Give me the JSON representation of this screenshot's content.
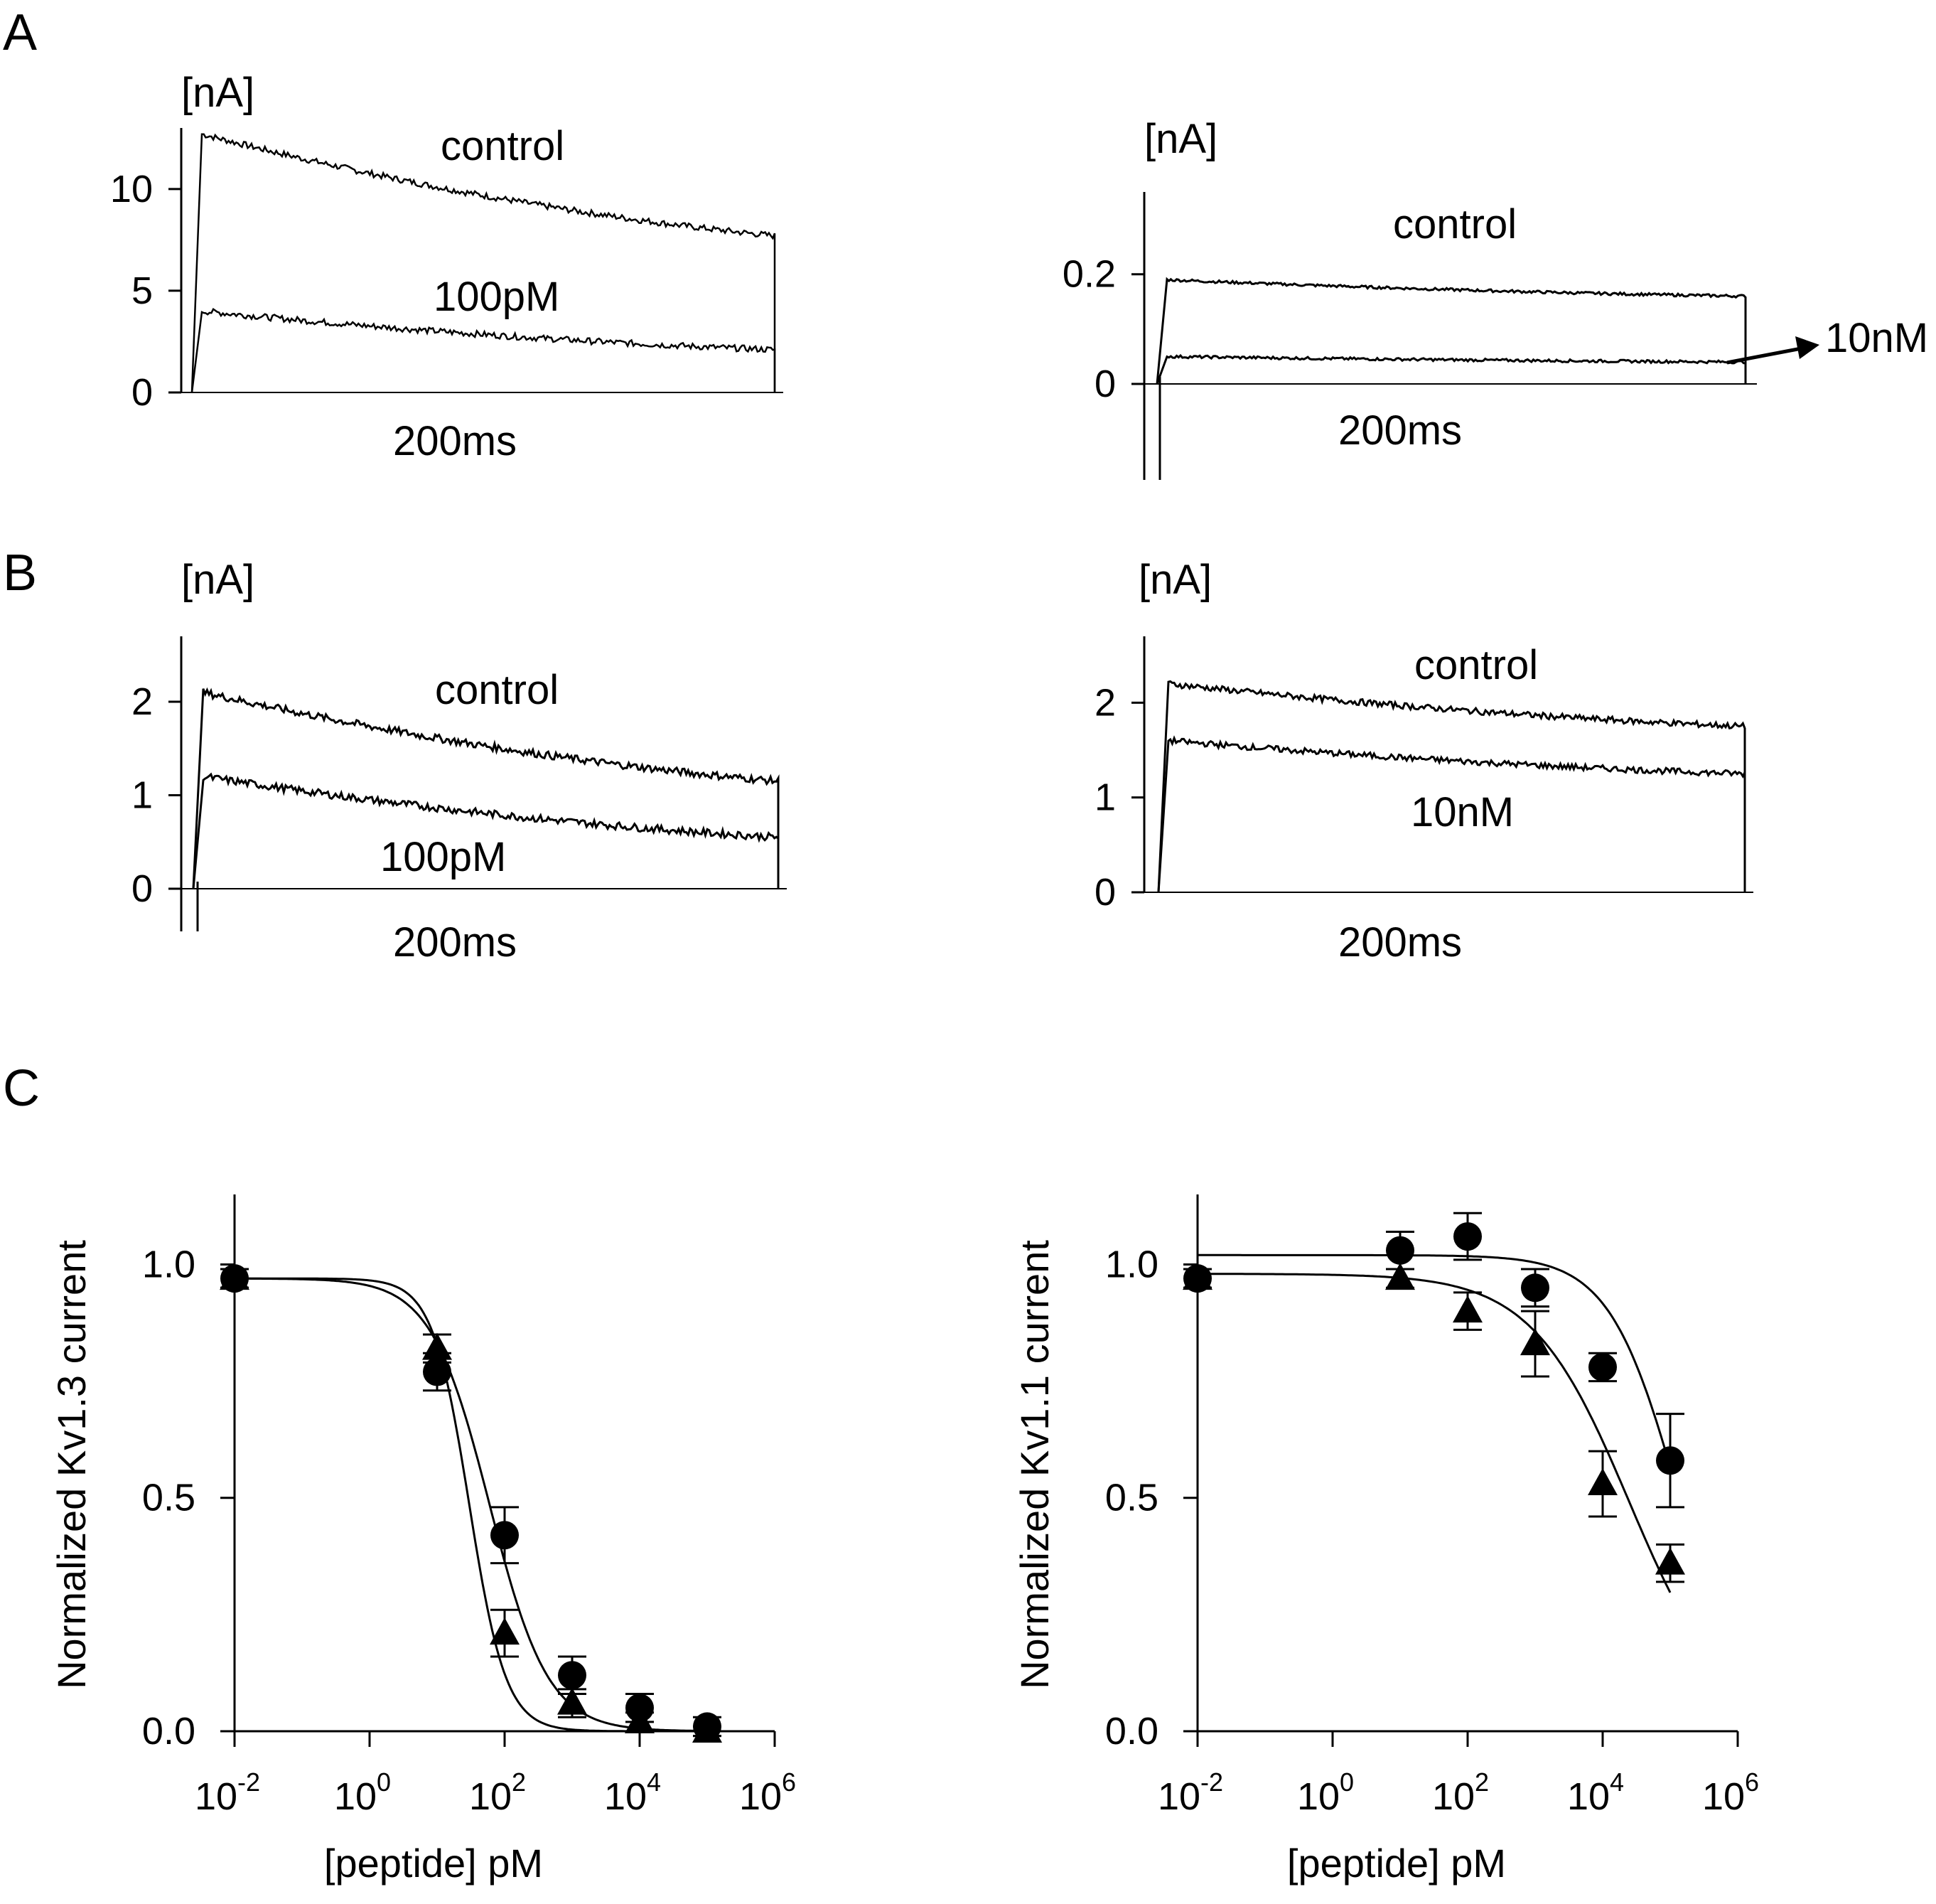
{
  "panels": {
    "A": "A",
    "B": "B",
    "C": "C"
  },
  "traces": [
    {
      "id": "A-left",
      "panel": "A",
      "unit": "[nA]",
      "yticks": [
        0,
        5,
        10
      ],
      "ytick_labels": [
        "0",
        "5",
        "10"
      ],
      "ylim": [
        0,
        13
      ],
      "time_label": "200ms",
      "noise": 0.02,
      "series": [
        {
          "name": "control",
          "peak": 12.7,
          "end": 7.7
        },
        {
          "name": "100pM",
          "peak": 4.0,
          "end": 2.1
        }
      ]
    },
    {
      "id": "A-right",
      "panel": "A",
      "unit": "[nA]",
      "yticks": [
        0,
        0.2
      ],
      "ytick_labels": [
        "0",
        "0.2"
      ],
      "ylim": [
        0,
        0.35
      ],
      "time_label": "200ms",
      "noise": 0.012,
      "series": [
        {
          "name": "control",
          "peak": 0.19,
          "end": 0.16
        },
        {
          "name": "10nM",
          "peak": 0.05,
          "end": 0.04
        }
      ]
    },
    {
      "id": "B-left",
      "panel": "B",
      "unit": "[nA]",
      "yticks": [
        0,
        1,
        2
      ],
      "ytick_labels": [
        "0",
        "1",
        "2"
      ],
      "ylim": [
        0,
        2.7
      ],
      "time_label": "200ms",
      "noise": 0.025,
      "series": [
        {
          "name": "control",
          "peak": 2.1,
          "end": 1.15
        },
        {
          "name": "100pM",
          "peak": 1.2,
          "end": 0.55
        }
      ]
    },
    {
      "id": "B-right",
      "panel": "B",
      "unit": "[nA]",
      "yticks": [
        0,
        1,
        2
      ],
      "ytick_labels": [
        "0",
        "1",
        "2"
      ],
      "ylim": [
        0,
        2.7
      ],
      "time_label": "200ms",
      "noise": 0.02,
      "series": [
        {
          "name": "control",
          "peak": 2.2,
          "end": 1.75
        },
        {
          "name": "10nM",
          "peak": 1.6,
          "end": 1.25
        }
      ]
    }
  ],
  "chart_data": [
    {
      "type": "scatter",
      "panel": "C",
      "ylabel": "Normalized Kv1.3 current",
      "xlabel": "[peptide] pM",
      "xscale": "log",
      "xlim": [
        0.01,
        1000000
      ],
      "ylim": [
        0,
        1.15
      ],
      "xticks": [
        0.01,
        1,
        100,
        10000,
        1000000
      ],
      "xtick_base": "10",
      "xtick_exps": [
        "-2",
        "0",
        "2",
        "4",
        "6"
      ],
      "yticks": [
        0,
        0.5,
        1.0
      ],
      "ytick_labels": [
        "0.0",
        "0.5",
        "1.0"
      ],
      "series": [
        {
          "marker": "circle",
          "x": [
            0.01,
            10,
            100,
            1000,
            10000,
            100000
          ],
          "y": [
            0.97,
            0.77,
            0.42,
            0.12,
            0.05,
            0.01
          ],
          "err": [
            0.02,
            0.04,
            0.06,
            0.04,
            0.03,
            0.02
          ],
          "fit": {
            "top": 0.97,
            "ic50": 60,
            "hill": 1.0
          }
        },
        {
          "marker": "triangle",
          "x": [
            0.01,
            10,
            100,
            1000,
            10000,
            100000
          ],
          "y": [
            0.97,
            0.82,
            0.21,
            0.06,
            0.02,
            0.0
          ],
          "err": [
            0.02,
            0.03,
            0.05,
            0.03,
            0.02,
            0.01
          ],
          "fit": {
            "top": 0.97,
            "ic50": 30,
            "hill": 1.6
          }
        }
      ]
    },
    {
      "type": "scatter",
      "panel": "C",
      "ylabel": "Normalized Kv1.1 current",
      "xlabel": "[peptide] pM",
      "xscale": "log",
      "xlim": [
        0.01,
        1000000
      ],
      "ylim": [
        0,
        1.15
      ],
      "xticks": [
        0.01,
        1,
        100,
        10000,
        1000000
      ],
      "xtick_base": "10",
      "xtick_exps": [
        "-2",
        "0",
        "2",
        "4",
        "6"
      ],
      "yticks": [
        0,
        0.5,
        1.0
      ],
      "ytick_labels": [
        "0.0",
        "0.5",
        "1.0"
      ],
      "series": [
        {
          "marker": "circle",
          "x": [
            0.01,
            10,
            100,
            1000,
            10000,
            100000
          ],
          "y": [
            0.97,
            1.03,
            1.06,
            0.95,
            0.78,
            0.58
          ],
          "err": [
            0.02,
            0.04,
            0.05,
            0.04,
            0.03,
            0.1
          ],
          "fit": {
            "top": 1.02,
            "ic50": 130000,
            "hill": 0.85
          }
        },
        {
          "marker": "triangle",
          "x": [
            0.01,
            10,
            100,
            1000,
            10000,
            100000
          ],
          "y": [
            0.97,
            0.97,
            0.9,
            0.83,
            0.53,
            0.36
          ],
          "err": [
            0.02,
            0.02,
            0.04,
            0.07,
            0.07,
            0.04
          ],
          "fit": {
            "top": 0.98,
            "ic50": 25000,
            "hill": 0.6
          }
        }
      ]
    }
  ]
}
